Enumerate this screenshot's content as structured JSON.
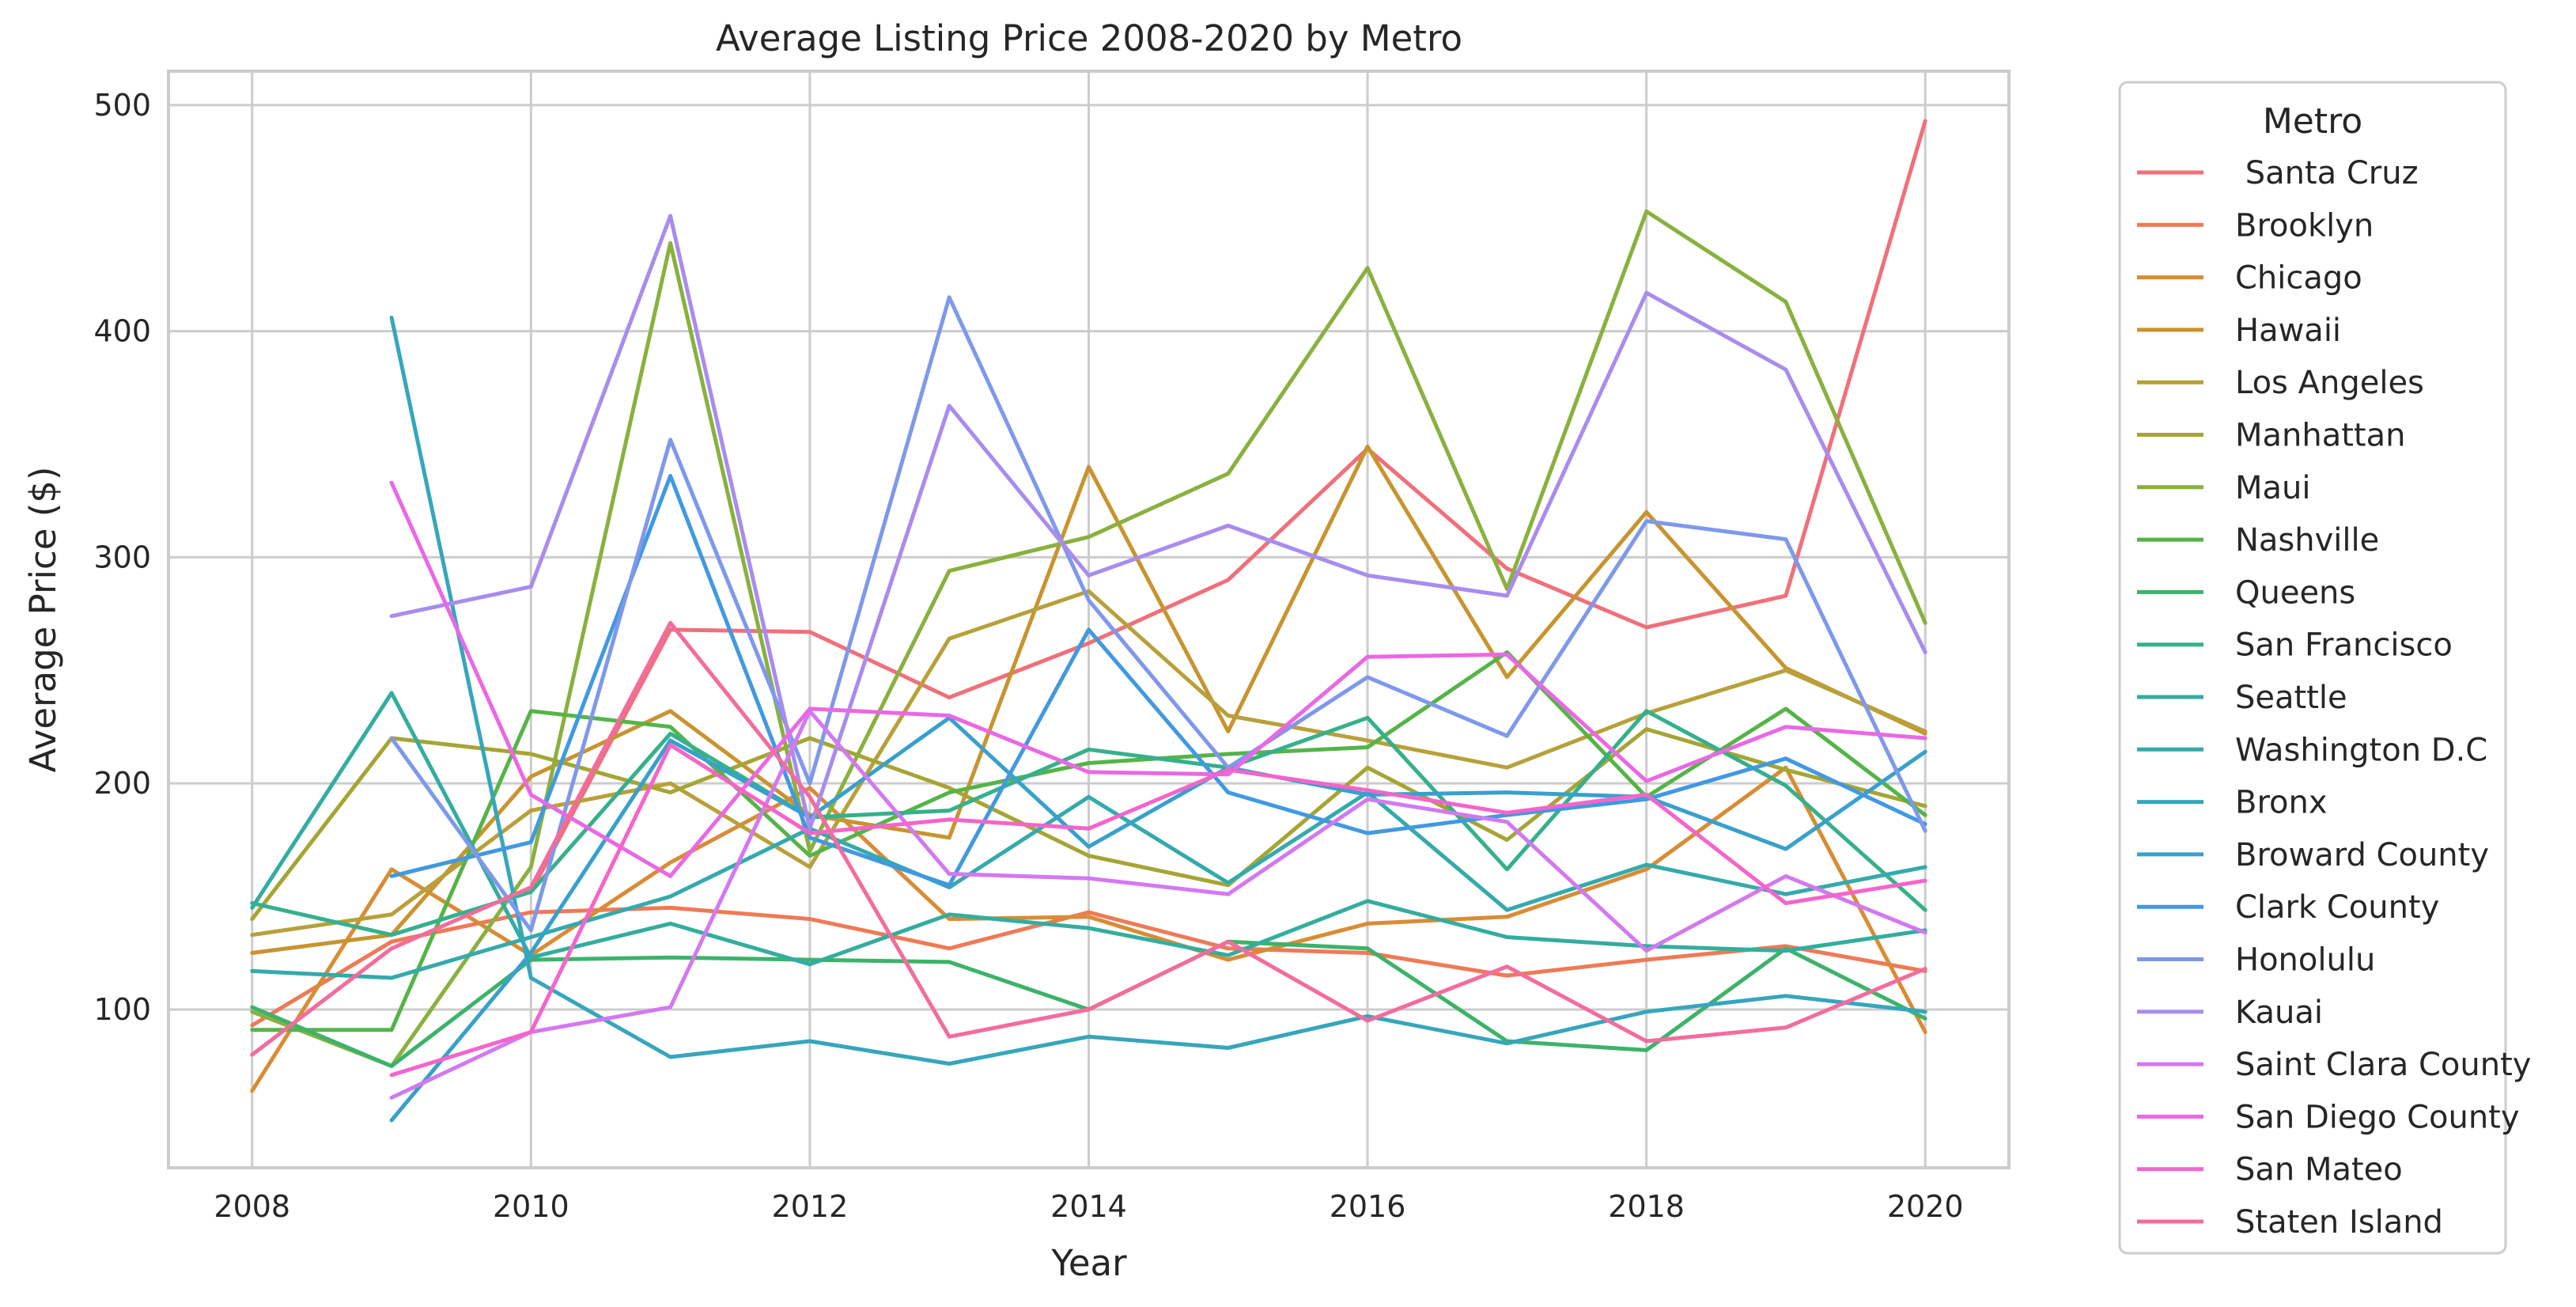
{
  "chart_data": {
    "type": "line",
    "title": "Average Listing Price 2008-2020 by Metro",
    "xlabel": "Year",
    "ylabel": "Average Price ($)",
    "xlim": [
      2007.4,
      2020.6
    ],
    "ylim": [
      30,
      515
    ],
    "xticks": [
      2008,
      2010,
      2012,
      2014,
      2016,
      2018,
      2020
    ],
    "yticks": [
      100,
      200,
      300,
      400,
      500
    ],
    "grid": true,
    "legend": {
      "title": "Metro",
      "position": "outside-right"
    },
    "x": [
      2008,
      2009,
      2010,
      2011,
      2012,
      2013,
      2014,
      2015,
      2016,
      2017,
      2018,
      2019,
      2020
    ],
    "series": [
      {
        "name": " Santa Cruz",
        "color": "#f0707a",
        "values": [
          null,
          null,
          152,
          268,
          267,
          238,
          262,
          290,
          348,
          295,
          269,
          283,
          493
        ]
      },
      {
        "name": "Brooklyn",
        "color": "#ee7a56",
        "values": [
          93,
          130,
          143,
          145,
          140,
          127,
          143,
          127,
          125,
          115,
          122,
          128,
          117
        ]
      },
      {
        "name": "Chicago",
        "color": "#d98c35",
        "values": [
          64,
          162,
          124,
          165,
          198,
          140,
          141,
          122,
          138,
          141,
          162,
          207,
          90
        ]
      },
      {
        "name": "Hawaii",
        "color": "#c8942f",
        "values": [
          125,
          133,
          203,
          232,
          186,
          176,
          340,
          223,
          349,
          247,
          320,
          251,
          222
        ]
      },
      {
        "name": "Los Angeles",
        "color": "#b8a03a",
        "values": [
          133,
          142,
          188,
          200,
          163,
          264,
          285,
          230,
          219,
          207,
          231,
          250,
          223
        ]
      },
      {
        "name": "Manhattan",
        "color": "#a5a534",
        "values": [
          140,
          220,
          213,
          196,
          220,
          198,
          168,
          155,
          207,
          175,
          224,
          206,
          190
        ]
      },
      {
        "name": "Maui",
        "color": "#8ab03e",
        "values": [
          99,
          75,
          163,
          439,
          170,
          294,
          309,
          337,
          428,
          286,
          453,
          413,
          271
        ]
      },
      {
        "name": "Nashville",
        "color": "#55b448",
        "values": [
          91,
          91,
          232,
          225,
          168,
          196,
          209,
          213,
          216,
          258,
          194,
          233,
          186
        ]
      },
      {
        "name": "Queens",
        "color": "#3cb36a",
        "values": [
          101,
          75,
          122,
          123,
          122,
          121,
          100,
          130,
          127,
          86,
          82,
          127,
          96
        ]
      },
      {
        "name": "San Francisco",
        "color": "#36b08c",
        "values": [
          147,
          133,
          152,
          222,
          185,
          188,
          215,
          207,
          229,
          162,
          232,
          199,
          144
        ]
      },
      {
        "name": "Seattle",
        "color": "#33ad9f",
        "values": [
          145,
          240,
          123,
          138,
          120,
          142,
          136,
          124,
          148,
          132,
          128,
          126,
          135
        ]
      },
      {
        "name": "Washington D.C",
        "color": "#34aaac",
        "values": [
          117,
          114,
          132,
          150,
          180,
          154,
          194,
          156,
          196,
          144,
          164,
          151,
          163
        ]
      },
      {
        "name": "Bronx",
        "color": "#36a6bb",
        "values": [
          null,
          406,
          114,
          79,
          86,
          76,
          88,
          83,
          97,
          85,
          99,
          106,
          99
        ]
      },
      {
        "name": "Broward County",
        "color": "#38a0cc",
        "values": [
          null,
          51,
          125,
          219,
          185,
          229,
          172,
          207,
          195,
          196,
          194,
          171,
          214
        ]
      },
      {
        "name": "Clark County",
        "color": "#4199e0",
        "values": [
          null,
          159,
          174,
          336,
          176,
          155,
          268,
          196,
          178,
          186,
          193,
          211,
          182
        ]
      },
      {
        "name": "Honolulu",
        "color": "#7e98ec",
        "values": [
          null,
          220,
          135,
          352,
          200,
          415,
          281,
          207,
          247,
          221,
          316,
          308,
          179
        ]
      },
      {
        "name": "Kauai",
        "color": "#a88cee",
        "values": [
          null,
          274,
          287,
          451,
          180,
          367,
          292,
          314,
          292,
          283,
          417,
          383,
          258
        ]
      },
      {
        "name": "Saint Clara County",
        "color": "#d379f0",
        "values": [
          null,
          61,
          90,
          101,
          232,
          160,
          158,
          151,
          193,
          183,
          126,
          159,
          134
        ]
      },
      {
        "name": "San Diego County",
        "color": "#ea68e4",
        "values": [
          null,
          333,
          195,
          159,
          233,
          230,
          205,
          204,
          256,
          257,
          201,
          225,
          220
        ]
      },
      {
        "name": "San Mateo",
        "color": "#f465ca",
        "values": [
          null,
          71,
          90,
          217,
          178,
          184,
          180,
          206,
          197,
          187,
          195,
          147,
          157
        ]
      },
      {
        "name": "Staten Island",
        "color": "#f36c9e",
        "values": [
          80,
          127,
          154,
          271,
          194,
          88,
          100,
          130,
          95,
          119,
          86,
          92,
          118
        ]
      }
    ]
  }
}
